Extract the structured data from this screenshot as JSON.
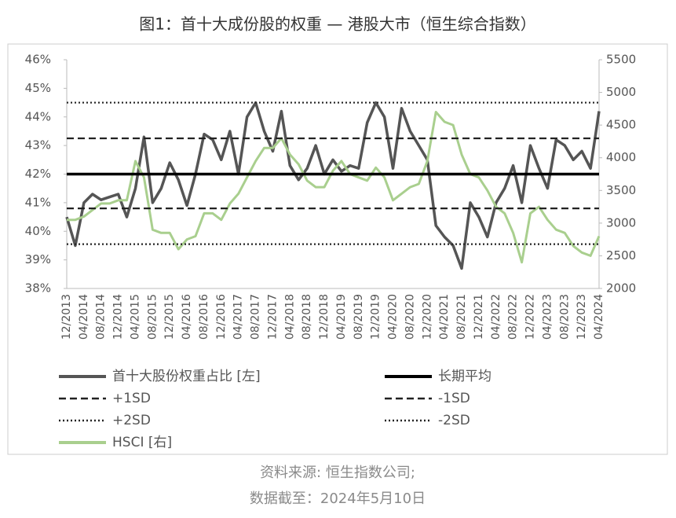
{
  "chart_data": {
    "type": "line",
    "title": "图1：首十大成份股的权重 — 港股大市（恒生综合指数）",
    "categories": [
      "12/2013",
      null,
      "04/2014",
      null,
      "08/2014",
      null,
      "12/2014",
      null,
      "04/2015",
      null,
      "08/2015",
      null,
      "12/2015",
      null,
      "04/2016",
      null,
      "08/2016",
      null,
      "12/2016",
      null,
      "04/2017",
      null,
      "08/2017",
      null,
      "12/2017",
      null,
      "04/2018",
      null,
      "08/2018",
      null,
      "12/2018",
      null,
      "04/2019",
      null,
      "08/2019",
      null,
      "12/2019",
      null,
      "04/2020",
      null,
      "08/2020",
      null,
      "12/2020",
      null,
      "04/2021",
      null,
      "08/2021",
      null,
      "12/2021",
      null,
      "04/2022",
      null,
      "08/2022",
      null,
      "12/2022",
      null,
      "04/2023",
      null,
      "08/2023",
      null,
      "12/2023",
      null,
      "04/2024"
    ],
    "series": [
      {
        "name": "首十大股份权重占比 [左]",
        "color": "#555555",
        "axis": "y",
        "values": [
          40.5,
          39.5,
          41.0,
          41.3,
          41.1,
          41.2,
          41.3,
          40.5,
          41.5,
          43.3,
          41.0,
          41.5,
          42.4,
          41.8,
          40.9,
          42.0,
          43.4,
          43.2,
          42.5,
          43.5,
          42.0,
          44.0,
          44.5,
          43.5,
          42.8,
          44.2,
          42.3,
          41.8,
          42.2,
          43.0,
          42.0,
          42.5,
          42.1,
          42.3,
          42.2,
          43.8,
          44.5,
          44.0,
          42.2,
          44.3,
          43.5,
          43.0,
          42.5,
          40.2,
          39.8,
          39.5,
          38.7,
          41.0,
          40.5,
          39.8,
          41.0,
          41.5,
          42.3,
          41.0,
          43.0,
          42.2,
          41.5,
          43.2,
          43.0,
          42.5,
          42.8,
          42.2,
          44.2
        ]
      },
      {
        "name": "HSCI [右]",
        "color": "#a9cf8e",
        "axis": "y2",
        "values": [
          3050,
          3050,
          3100,
          3200,
          3300,
          3300,
          3350,
          3350,
          3950,
          3700,
          2900,
          2850,
          2850,
          2600,
          2750,
          2800,
          3150,
          3150,
          3050,
          3300,
          3450,
          3700,
          3950,
          4150,
          4150,
          4300,
          4050,
          3900,
          3650,
          3550,
          3550,
          3800,
          3950,
          3750,
          3700,
          3650,
          3850,
          3700,
          3350,
          3450,
          3550,
          3600,
          3950,
          4700,
          4550,
          4500,
          4050,
          3750,
          3700,
          3500,
          3250,
          3150,
          2850,
          2400,
          3150,
          3250,
          3050,
          2900,
          2850,
          2650,
          2550,
          2500,
          2800
        ]
      }
    ],
    "reference_lines": [
      {
        "name": "长期平均",
        "value": 42.0,
        "color": "#000000",
        "style": "solid"
      },
      {
        "name": "+1SD",
        "value": 43.25,
        "color": "#222222",
        "style": "dashed"
      },
      {
        "name": "-1SD",
        "value": 40.8,
        "color": "#222222",
        "style": "dashed"
      },
      {
        "name": "+2SD",
        "value": 44.5,
        "color": "#222222",
        "style": "dotted"
      },
      {
        "name": "-2SD",
        "value": 39.55,
        "color": "#222222",
        "style": "dotted"
      }
    ],
    "ylim": [
      38,
      46
    ],
    "yticks": [
      {
        "value": 38,
        "label": "38%"
      },
      {
        "value": 39,
        "label": "39%"
      },
      {
        "value": 40,
        "label": "40%"
      },
      {
        "value": 41,
        "label": "41%"
      },
      {
        "value": 42,
        "label": "42%"
      },
      {
        "value": 43,
        "label": "43%"
      },
      {
        "value": 44,
        "label": "44%"
      },
      {
        "value": 45,
        "label": "45%"
      },
      {
        "value": 46,
        "label": "46%"
      }
    ],
    "y2lim": [
      2000,
      5500
    ],
    "y2ticks": [
      2000,
      2500,
      3000,
      3500,
      4000,
      4500,
      5000,
      5500
    ],
    "grid": false
  },
  "footer": {
    "source": "资料来源: 恒生指数公司;",
    "date": "数据截至：2024年5月10日"
  }
}
